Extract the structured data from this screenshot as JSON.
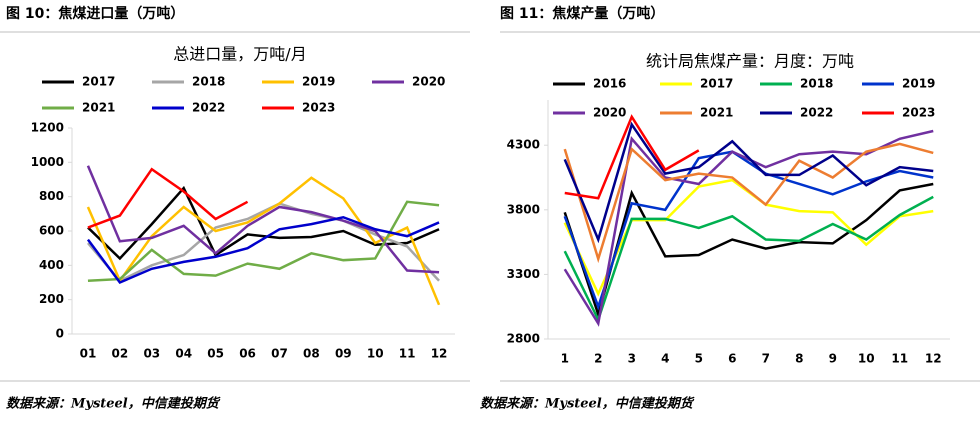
{
  "captions": [
    "图 10：焦煤进口量（万吨）",
    "图 11：焦煤产量（万吨）"
  ],
  "sources": [
    "数据来源：Mysteel，中信建投期货",
    "数据来源：Mysteel，中信建投期货"
  ],
  "chart_data": [
    {
      "type": "line",
      "title": "总进口量，万吨/月",
      "categories": [
        "01",
        "02",
        "03",
        "04",
        "05",
        "06",
        "07",
        "08",
        "09",
        "10",
        "11",
        "12"
      ],
      "ylim": [
        0,
        1200
      ],
      "yticks": [
        0,
        200,
        400,
        600,
        800,
        1000,
        1200
      ],
      "series": [
        {
          "name": "2017",
          "color": "#000000",
          "values": [
            620,
            440,
            640,
            850,
            460,
            580,
            560,
            565,
            600,
            520,
            530,
            610
          ]
        },
        {
          "name": "2018",
          "color": "#a6a6a6",
          "values": [
            530,
            310,
            400,
            460,
            620,
            670,
            760,
            700,
            660,
            580,
            510,
            310
          ]
        },
        {
          "name": "2019",
          "color": "#ffc000",
          "values": [
            740,
            310,
            570,
            740,
            600,
            650,
            760,
            910,
            790,
            530,
            620,
            170
          ]
        },
        {
          "name": "2020",
          "color": "#7030a0",
          "values": [
            980,
            540,
            560,
            630,
            470,
            630,
            740,
            710,
            660,
            600,
            370,
            360
          ]
        },
        {
          "name": "2021",
          "color": "#70ad47",
          "values": [
            310,
            320,
            490,
            350,
            340,
            410,
            380,
            470,
            430,
            440,
            770,
            750
          ]
        },
        {
          "name": "2022",
          "color": "#0000cc",
          "values": [
            550,
            300,
            380,
            420,
            450,
            500,
            610,
            640,
            680,
            610,
            570,
            650
          ]
        },
        {
          "name": "2023",
          "color": "#ff0000",
          "values": [
            620,
            690,
            960,
            830,
            670,
            770,
            null,
            null,
            null,
            null,
            null,
            null
          ]
        }
      ]
    },
    {
      "type": "line",
      "title": "统计局焦煤产量：月度：万吨",
      "categories": [
        "1",
        "2",
        "3",
        "4",
        "5",
        "6",
        "7",
        "8",
        "9",
        "10",
        "11",
        "12"
      ],
      "ylim": [
        2800,
        4650
      ],
      "yticks": [
        2800,
        3300,
        3800,
        4300
      ],
      "series": [
        {
          "name": "2016",
          "color": "#000000",
          "values": [
            3780,
            2990,
            3930,
            3440,
            3450,
            3570,
            3500,
            3550,
            3540,
            3720,
            3950,
            4000
          ]
        },
        {
          "name": "2017",
          "color": "#ffff00",
          "values": [
            3700,
            3150,
            3720,
            3720,
            3980,
            4030,
            3840,
            3790,
            3780,
            3530,
            3750,
            3790
          ]
        },
        {
          "name": "2018",
          "color": "#00b050",
          "values": [
            3480,
            2950,
            3730,
            3730,
            3660,
            3750,
            3570,
            3560,
            3690,
            3570,
            3760,
            3900
          ]
        },
        {
          "name": "2019",
          "color": "#0033cc",
          "values": [
            3750,
            3050,
            3850,
            3800,
            4200,
            4250,
            4080,
            4000,
            3920,
            4020,
            4100,
            4050
          ]
        },
        {
          "name": "2020",
          "color": "#7030a0",
          "values": [
            3340,
            2920,
            4350,
            4050,
            4000,
            4250,
            4130,
            4230,
            4250,
            4230,
            4350,
            4410
          ]
        },
        {
          "name": "2021",
          "color": "#ed7d31",
          "values": [
            4270,
            3420,
            4270,
            4030,
            4080,
            4050,
            3840,
            4180,
            4050,
            4250,
            4310,
            4240
          ]
        },
        {
          "name": "2022",
          "color": "#00008b",
          "values": [
            4190,
            3570,
            4460,
            4080,
            4130,
            4330,
            4070,
            4070,
            4220,
            3990,
            4130,
            4100
          ]
        },
        {
          "name": "2023",
          "color": "#ff0000",
          "values": [
            3930,
            3890,
            4520,
            4110,
            4260,
            null,
            null,
            null,
            null,
            null,
            null,
            null
          ]
        }
      ]
    }
  ]
}
